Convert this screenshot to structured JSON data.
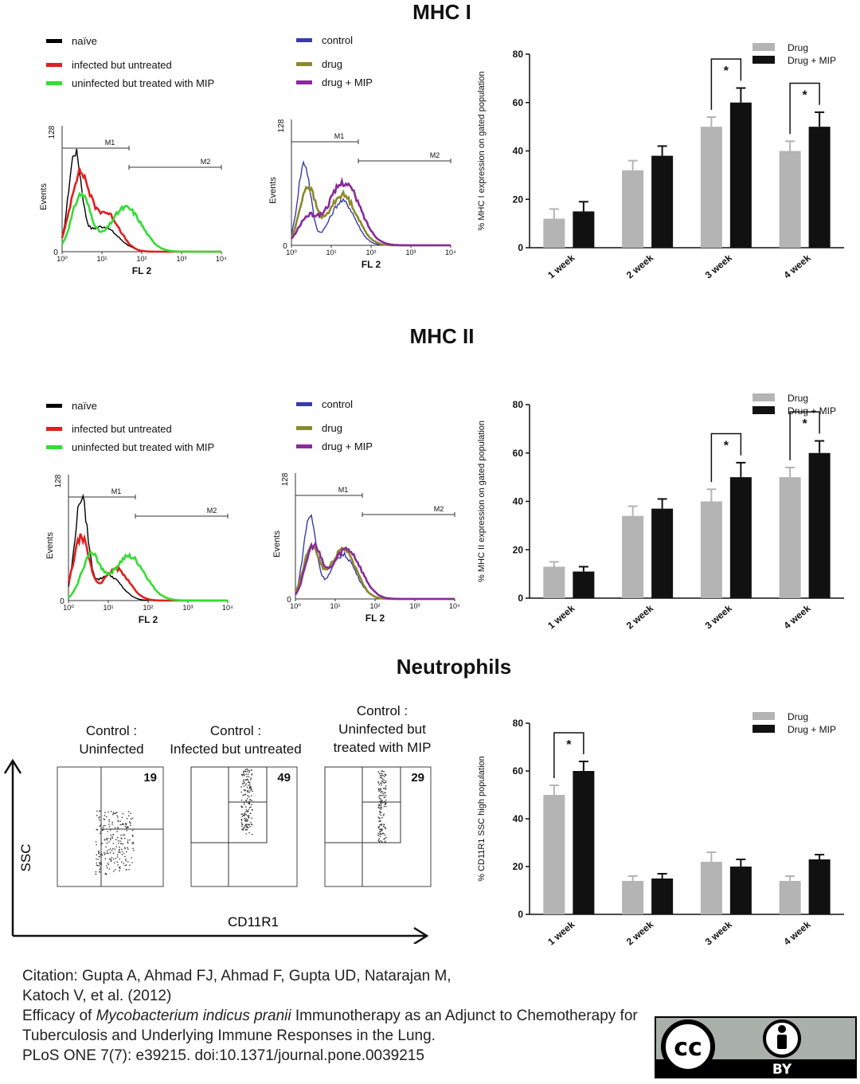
{
  "sections": {
    "mhc1": {
      "title": "MHC I"
    },
    "mhc2": {
      "title": "MHC II"
    },
    "neut": {
      "title": "Neutrophils"
    }
  },
  "flow_legend_left": [
    {
      "label": "naïve",
      "color": "#000000"
    },
    {
      "label": "infected but untreated",
      "color": "#e02020"
    },
    {
      "label": "uninfected but treated with MIP",
      "color": "#33dd33"
    }
  ],
  "flow_legend_right": [
    {
      "label": "control",
      "color": "#3a3aaa"
    },
    {
      "label": "drug",
      "color": "#8a8a2a"
    },
    {
      "label": "drug + MIP",
      "color": "#8a2a9a"
    }
  ],
  "histogram": {
    "xlabel": "FL 2",
    "ylabel": "Events",
    "ymax_label": "128",
    "ymin_label": "0",
    "gate1": "M1",
    "gate2": "M2",
    "xticks": [
      "10⁰",
      "10¹",
      "10²",
      "10³",
      "10⁴"
    ]
  },
  "neutrophil_panels": {
    "axis_y": "SSC",
    "axis_x": "CD11R1",
    "panels": [
      {
        "label_line1": "Control :",
        "label_line2": "Uninfected",
        "value": "19"
      },
      {
        "label_line1": "Control :",
        "label_line2": "Infected but untreated",
        "value": "49"
      },
      {
        "label_line1": "Control :",
        "label_line2": "Uninfected but",
        "label_line3": "treated  with MIP",
        "value": "29"
      }
    ]
  },
  "chart_data": [
    {
      "type": "bar",
      "categories": [
        "1 week",
        "2 week",
        "3 week",
        "4 week"
      ],
      "series": [
        {
          "name": "Drug",
          "values": [
            12,
            32,
            50,
            40
          ],
          "errors": [
            4,
            4,
            4,
            4
          ],
          "color": "#b4b4b4"
        },
        {
          "name": "Drug + MIP",
          "values": [
            15,
            38,
            60,
            50
          ],
          "errors": [
            4,
            4,
            6,
            6
          ],
          "color": "#111111"
        }
      ],
      "ylabel": "% MHC I expression on gated population",
      "ylim": [
        0,
        80
      ],
      "yticks": [
        0,
        20,
        40,
        60,
        80
      ],
      "significance": [
        {
          "category": 2,
          "label": "*"
        },
        {
          "category": 3,
          "label": "*"
        }
      ],
      "legend": "top-right"
    },
    {
      "type": "bar",
      "categories": [
        "1 week",
        "2 week",
        "3 week",
        "4 week"
      ],
      "series": [
        {
          "name": "Drug",
          "values": [
            13,
            34,
            40,
            50
          ],
          "errors": [
            2,
            4,
            5,
            4
          ],
          "color": "#b4b4b4"
        },
        {
          "name": "Drug + MIP",
          "values": [
            11,
            37,
            50,
            60
          ],
          "errors": [
            2,
            4,
            6,
            5
          ],
          "color": "#111111"
        }
      ],
      "ylabel": "% MHC II expression on gated population",
      "ylim": [
        0,
        80
      ],
      "yticks": [
        0,
        20,
        40,
        60,
        80
      ],
      "significance": [
        {
          "category": 2,
          "label": "*"
        },
        {
          "category": 3,
          "label": "*"
        }
      ],
      "legend": "top-right"
    },
    {
      "type": "bar",
      "categories": [
        "1 week",
        "2 week",
        "3 week",
        "4 week"
      ],
      "series": [
        {
          "name": "Drug",
          "values": [
            50,
            14,
            22,
            14
          ],
          "errors": [
            4,
            2,
            4,
            2
          ],
          "color": "#b4b4b4"
        },
        {
          "name": "Drug + MIP",
          "values": [
            60,
            15,
            20,
            23
          ],
          "errors": [
            4,
            2,
            3,
            2
          ],
          "color": "#111111"
        }
      ],
      "ylabel": "% CD11R1 SSC high population",
      "ylim": [
        0,
        80
      ],
      "yticks": [
        0,
        20,
        40,
        60,
        80
      ],
      "significance": [
        {
          "category": 0,
          "label": "*"
        }
      ],
      "legend": "top-right"
    }
  ],
  "citation": {
    "line1": "Citation: Gupta A, Ahmad FJ, Ahmad F, Gupta UD, Natarajan M,",
    "line2": "Katoch V, et al. (2012)",
    "title_pre": "Efficacy of ",
    "title_italic": "Mycobacterium indicus pranii",
    "title_post": " Immunotherapy as an Adjunct to Chemotherapy for Tuberculosis and Underlying Immune Responses in the Lung.",
    "journal": "PLoS ONE 7(7): e39215. doi:10.1371/journal.pone.0039215"
  },
  "license": {
    "cc": "cc",
    "by": "BY"
  }
}
